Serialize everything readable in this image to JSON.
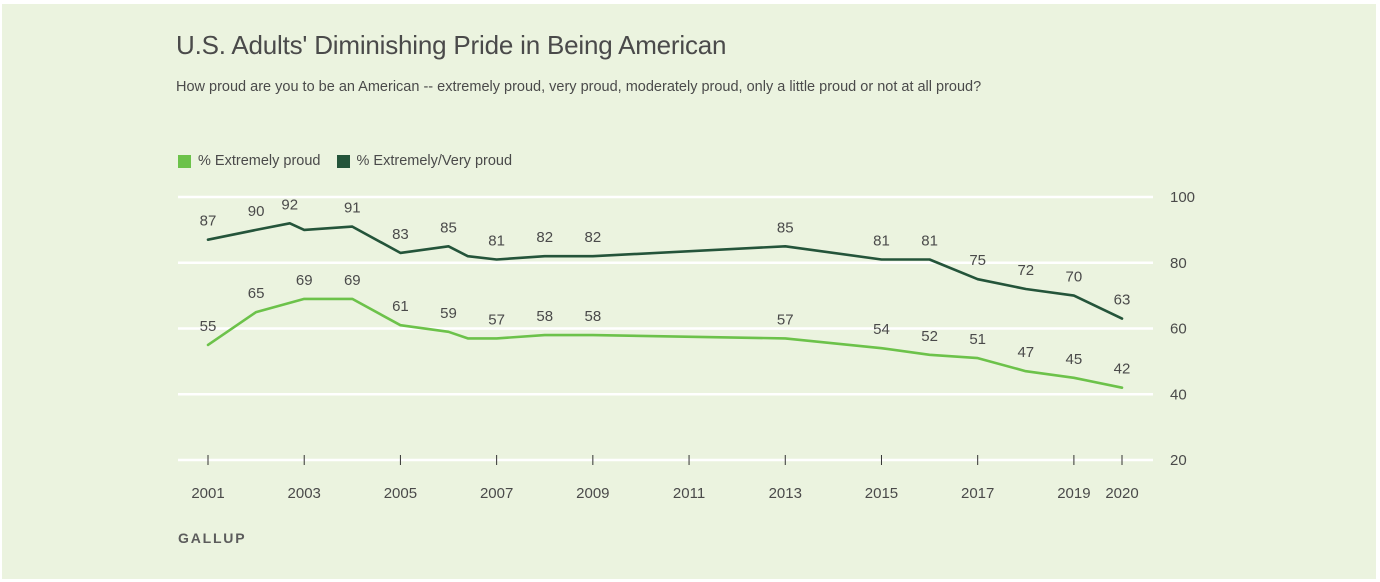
{
  "title": "U.S. Adults' Diminishing Pride in Being American",
  "subtitle": "How proud are you to be an American -- extremely proud, very proud, moderately proud, only a little proud or not at all proud?",
  "source": "GALLUP",
  "colors": {
    "background": "#ebf3df",
    "extremely": "#6cc24a",
    "extremely_very": "#24543a",
    "gridline": "#ffffff",
    "text": "#4a4a4a"
  },
  "chart_data": {
    "type": "line",
    "ylim": [
      20,
      100
    ],
    "yticks": [
      20,
      40,
      60,
      80,
      100
    ],
    "xlim": [
      2001,
      2020
    ],
    "xticks": [
      "2001",
      "2003",
      "2005",
      "2007",
      "2009",
      "2011",
      "2013",
      "2015",
      "2017",
      "2019",
      "2020"
    ],
    "grid": true,
    "legend_position": "top-left",
    "y_axis_position": "right",
    "series": [
      {
        "name": "% Extremely/Very proud",
        "color": "#24543a",
        "points": [
          {
            "x": 2001.0,
            "y": 87,
            "label": "87"
          },
          {
            "x": 2002.0,
            "y": 90,
            "label": "90"
          },
          {
            "x": 2002.7,
            "y": 92,
            "label": "92"
          },
          {
            "x": 2003.0,
            "y": 90,
            "label": ""
          },
          {
            "x": 2004.0,
            "y": 91,
            "label": "91"
          },
          {
            "x": 2005.0,
            "y": 83,
            "label": "83"
          },
          {
            "x": 2006.0,
            "y": 85,
            "label": "85"
          },
          {
            "x": 2006.4,
            "y": 82,
            "label": ""
          },
          {
            "x": 2007.0,
            "y": 81,
            "label": "81"
          },
          {
            "x": 2008.0,
            "y": 82,
            "label": "82"
          },
          {
            "x": 2009.0,
            "y": 82,
            "label": "82"
          },
          {
            "x": 2013.0,
            "y": 85,
            "label": "85"
          },
          {
            "x": 2015.0,
            "y": 81,
            "label": "81"
          },
          {
            "x": 2016.0,
            "y": 81,
            "label": "81"
          },
          {
            "x": 2017.0,
            "y": 75,
            "label": "75"
          },
          {
            "x": 2018.0,
            "y": 72,
            "label": "72"
          },
          {
            "x": 2019.0,
            "y": 70,
            "label": "70"
          },
          {
            "x": 2020.0,
            "y": 63,
            "label": "63"
          }
        ]
      },
      {
        "name": "% Extremely proud",
        "color": "#6cc24a",
        "points": [
          {
            "x": 2001.0,
            "y": 55,
            "label": "55"
          },
          {
            "x": 2002.0,
            "y": 65,
            "label": "65"
          },
          {
            "x": 2003.0,
            "y": 69,
            "label": "69"
          },
          {
            "x": 2004.0,
            "y": 69,
            "label": "69"
          },
          {
            "x": 2005.0,
            "y": 61,
            "label": "61"
          },
          {
            "x": 2006.0,
            "y": 59,
            "label": "59"
          },
          {
            "x": 2006.4,
            "y": 57,
            "label": ""
          },
          {
            "x": 2007.0,
            "y": 57,
            "label": "57"
          },
          {
            "x": 2008.0,
            "y": 58,
            "label": "58"
          },
          {
            "x": 2009.0,
            "y": 58,
            "label": "58"
          },
          {
            "x": 2013.0,
            "y": 57,
            "label": "57"
          },
          {
            "x": 2015.0,
            "y": 54,
            "label": "54"
          },
          {
            "x": 2016.0,
            "y": 52,
            "label": "52"
          },
          {
            "x": 2017.0,
            "y": 51,
            "label": "51"
          },
          {
            "x": 2018.0,
            "y": 47,
            "label": "47"
          },
          {
            "x": 2019.0,
            "y": 45,
            "label": "45"
          },
          {
            "x": 2020.0,
            "y": 42,
            "label": "42"
          }
        ]
      }
    ]
  }
}
